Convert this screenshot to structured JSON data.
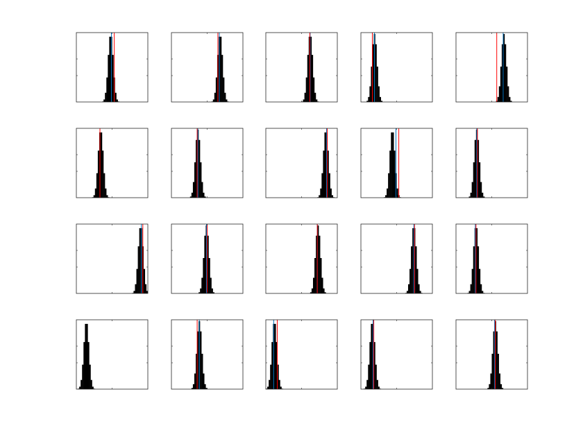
{
  "figure": {
    "background": "#ffffff"
  },
  "colors": {
    "hist": "#000000",
    "estimate": "#0072bd",
    "truth": "#ff0000",
    "axes": "#262626"
  },
  "chart_data": [
    {
      "type": "histogram",
      "mu": 0.48,
      "sd": 0.035,
      "truth": 0.53,
      "estimate": 0.49,
      "xlim": [
        0,
        1
      ],
      "grid": false
    },
    {
      "type": "histogram",
      "mu": 0.68,
      "sd": 0.035,
      "truth": 0.65,
      "estimate": 0.67,
      "xlim": [
        0,
        1
      ],
      "grid": false
    },
    {
      "type": "histogram",
      "mu": 0.62,
      "sd": 0.035,
      "truth": 0.615,
      "estimate": 0.62,
      "xlim": [
        0,
        1
      ],
      "grid": false
    },
    {
      "type": "histogram",
      "mu": 0.19,
      "sd": 0.035,
      "truth": 0.16,
      "estimate": 0.19,
      "xlim": [
        0,
        1
      ],
      "grid": false
    },
    {
      "type": "histogram",
      "mu": 0.67,
      "sd": 0.035,
      "truth": 0.57,
      "estimate": 0.66,
      "xlim": [
        0,
        1
      ],
      "grid": false
    },
    {
      "type": "histogram",
      "mu": 0.34,
      "sd": 0.035,
      "truth": 0.33,
      "estimate": 0.33,
      "xlim": [
        0,
        1
      ],
      "grid": false
    },
    {
      "type": "histogram",
      "mu": 0.37,
      "sd": 0.035,
      "truth": 0.36,
      "estimate": 0.37,
      "xlim": [
        0,
        1
      ],
      "grid": false
    },
    {
      "type": "histogram",
      "mu": 0.84,
      "sd": 0.035,
      "truth": 0.86,
      "estimate": 0.85,
      "xlim": [
        0,
        1
      ],
      "grid": false
    },
    {
      "type": "histogram",
      "mu": 0.44,
      "sd": 0.035,
      "truth": 0.53,
      "estimate": 0.49,
      "xlim": [
        0,
        1
      ],
      "grid": false
    },
    {
      "type": "histogram",
      "mu": 0.29,
      "sd": 0.035,
      "truth": 0.3,
      "estimate": 0.29,
      "xlim": [
        0,
        1
      ],
      "grid": false
    },
    {
      "type": "histogram",
      "mu": 0.9,
      "sd": 0.035,
      "truth": 0.93,
      "estimate": 0.91,
      "xlim": [
        0,
        1
      ],
      "grid": false
    },
    {
      "type": "histogram",
      "mu": 0.49,
      "sd": 0.035,
      "truth": 0.5,
      "estimate": 0.49,
      "xlim": [
        0,
        1
      ],
      "grid": false
    },
    {
      "type": "histogram",
      "mu": 0.73,
      "sd": 0.035,
      "truth": 0.72,
      "estimate": 0.72,
      "xlim": [
        0,
        1
      ],
      "grid": false
    },
    {
      "type": "histogram",
      "mu": 0.74,
      "sd": 0.035,
      "truth": 0.75,
      "estimate": 0.74,
      "xlim": [
        0,
        1
      ],
      "grid": false
    },
    {
      "type": "histogram",
      "mu": 0.28,
      "sd": 0.035,
      "truth": 0.28,
      "estimate": 0.27,
      "xlim": [
        0,
        1
      ],
      "grid": false
    },
    {
      "type": "histogram",
      "mu": 0.14,
      "sd": 0.035,
      "truth": null,
      "estimate": null,
      "xlim": [
        0,
        1
      ],
      "grid": false
    },
    {
      "type": "histogram",
      "mu": 0.39,
      "sd": 0.035,
      "truth": 0.36,
      "estimate": 0.39,
      "xlim": [
        0,
        1
      ],
      "grid": false
    },
    {
      "type": "histogram",
      "mu": 0.12,
      "sd": 0.035,
      "truth": 0.16,
      "estimate": 0.11,
      "xlim": [
        0,
        1
      ],
      "grid": false
    },
    {
      "type": "histogram",
      "mu": 0.16,
      "sd": 0.035,
      "truth": 0.18,
      "estimate": 0.17,
      "xlim": [
        0,
        1
      ],
      "grid": false
    },
    {
      "type": "histogram",
      "mu": 0.55,
      "sd": 0.035,
      "truth": 0.55,
      "estimate": 0.54,
      "xlim": [
        0,
        1
      ],
      "grid": false
    }
  ]
}
